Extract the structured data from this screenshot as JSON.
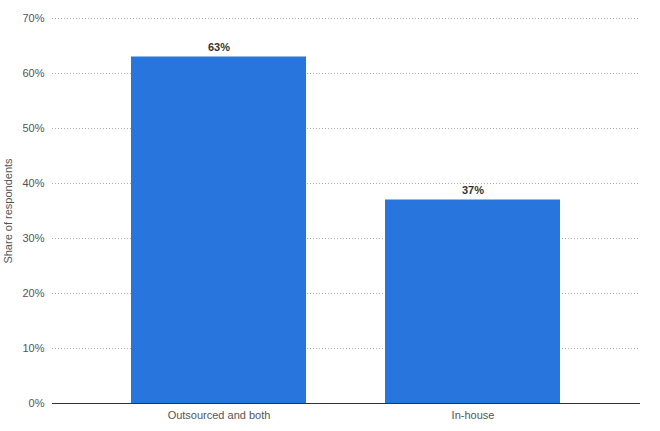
{
  "chart_data": {
    "type": "bar",
    "y_label": "Share of respondents",
    "categories": [
      "Outsourced and both",
      "In-house"
    ],
    "values": [
      63,
      37
    ],
    "value_labels": [
      "63%",
      "37%"
    ],
    "data_labels": true,
    "color": "#2876dd",
    "ylim": [
      0,
      70
    ],
    "yticks": [
      {
        "value": 0,
        "label": "0%"
      },
      {
        "value": 10,
        "label": "10%"
      },
      {
        "value": 20,
        "label": "20%"
      },
      {
        "value": 30,
        "label": "30%"
      },
      {
        "value": 40,
        "label": "40%"
      },
      {
        "value": 50,
        "label": "50%"
      },
      {
        "value": 60,
        "label": "60%"
      },
      {
        "value": 70,
        "label": "70%"
      }
    ],
    "grid": true
  }
}
